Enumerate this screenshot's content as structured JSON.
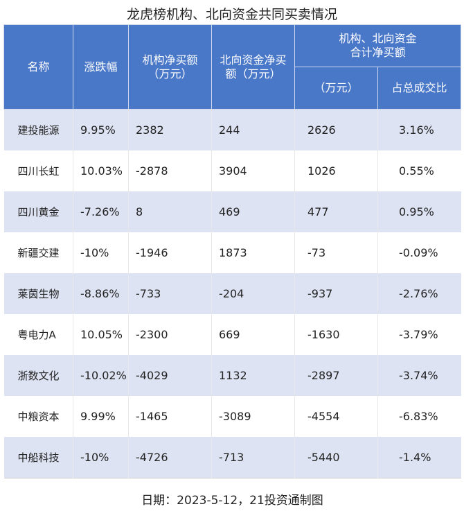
{
  "title": "龙虎榜机构、北向资金共同买卖情况",
  "header": {
    "columns": [
      "名称",
      "涨跌幅",
      "机构净买额\n（万元）",
      "北向资金净买\n额（万元）"
    ],
    "group": "机构、北向资金\n合计净买额",
    "subcolumns": [
      "（万元）",
      "占总成交比"
    ]
  },
  "rows": [
    [
      "建投能源",
      "9.95%",
      "2382",
      "244",
      "2626",
      "3.16%"
    ],
    [
      "四川长虹",
      "10.03%",
      "-2878",
      "3904",
      "1026",
      "0.55%"
    ],
    [
      "四川黄金",
      "-7.26%",
      "8",
      "469",
      "477",
      "0.95%"
    ],
    [
      "新疆交建",
      "-10%",
      "-1946",
      "1873",
      "-73",
      "-0.09%"
    ],
    [
      "莱茵生物",
      "-8.86%",
      "-733",
      "-204",
      "-937",
      "-2.76%"
    ],
    [
      "粤电力A",
      "10.05%",
      "-2300",
      "669",
      "-1630",
      "-3.79%"
    ],
    [
      "浙数文化",
      "-10.02%",
      "-4029",
      "1132",
      "-2897",
      "-3.74%"
    ],
    [
      "中粮资本",
      "9.99%",
      "-1465",
      "-3089",
      "-4554",
      "-6.83%"
    ],
    [
      "中船科技",
      "-10%",
      "-4726",
      "-713",
      "-5440",
      "-1.4%"
    ]
  ],
  "footer": "日期：2023-5-12，21投资通制图"
}
